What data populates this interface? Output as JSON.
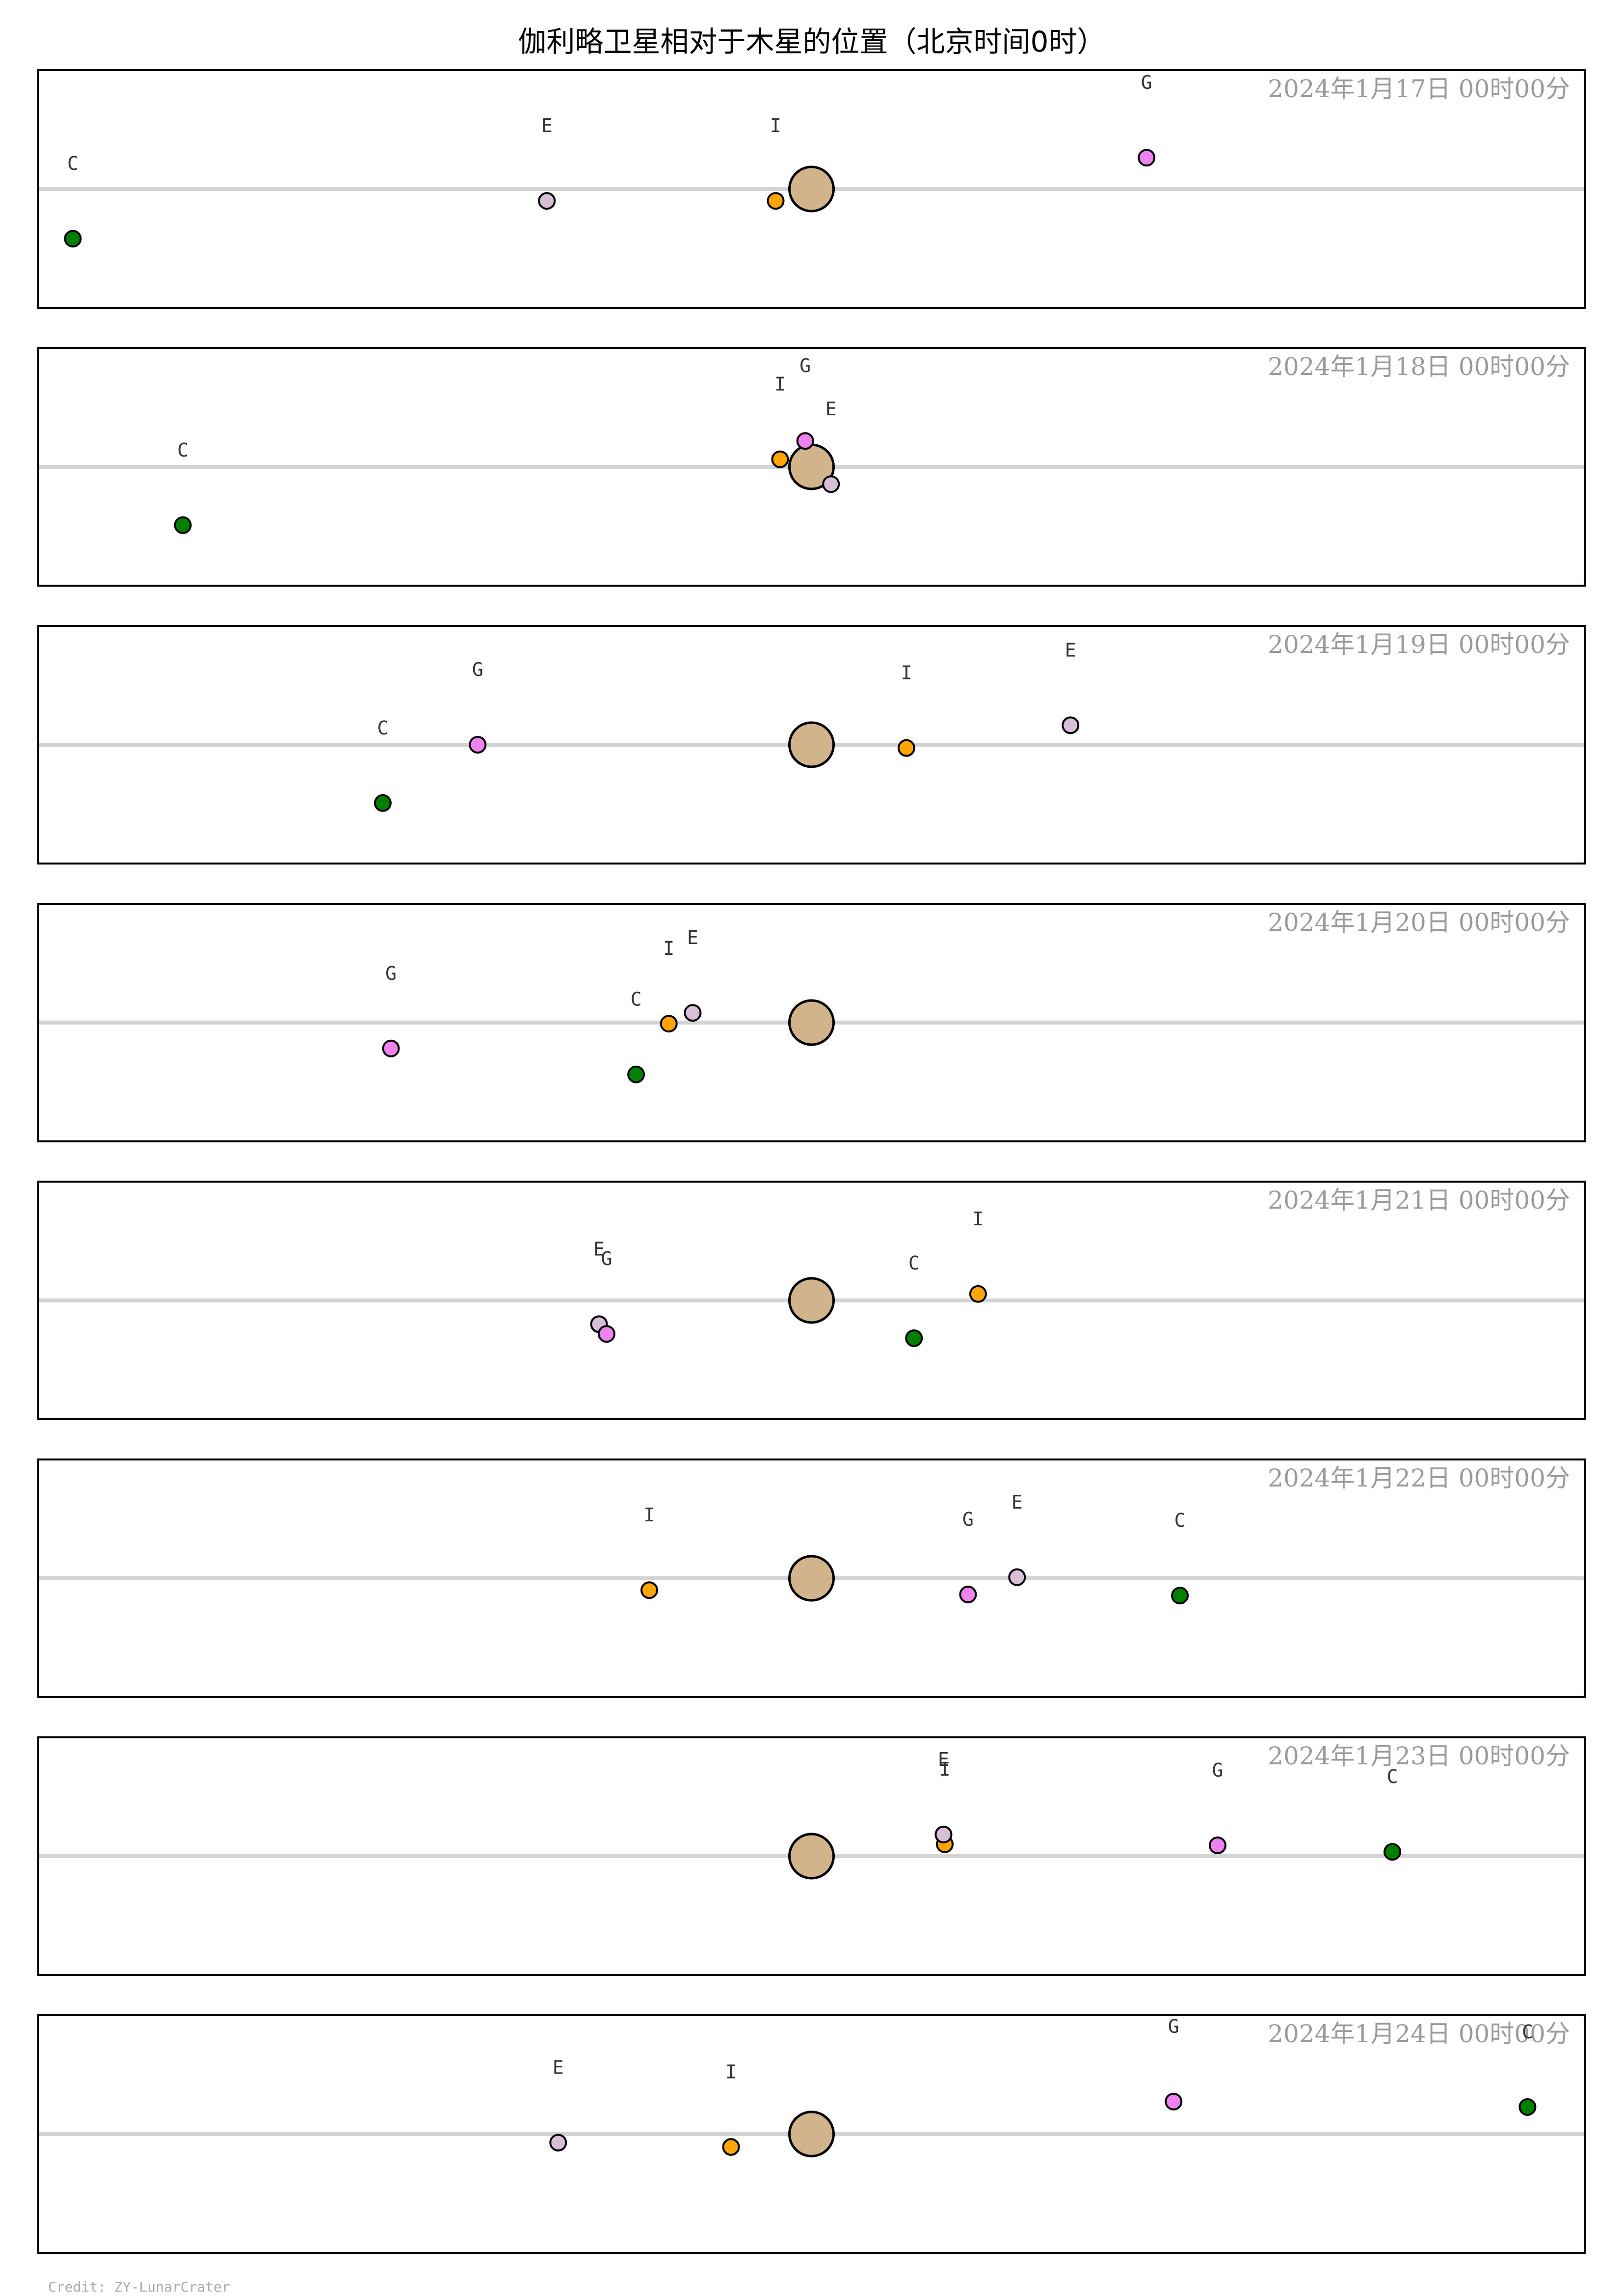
{
  "title": "伽利略卫星相对于木星的位置（北京时间0时）",
  "credit": "Credit: ZY-LunarCrater",
  "colors": {
    "I": "#ffa500",
    "E": "#d8bfd8",
    "G": "#ee82ee",
    "C": "#008000",
    "jupiter": "#d2b48c"
  },
  "chart_data": {
    "type": "scatter",
    "x_range": [
      -12.3,
      12.3
    ],
    "y_range": [
      -1.1,
      1.1
    ],
    "series_names": [
      "I",
      "E",
      "G",
      "C"
    ],
    "panels": [
      {
        "label": "2024年1月17日  00时00分",
        "moons": [
          {
            "name": "I",
            "x": -0.57,
            "y": -0.11
          },
          {
            "name": "E",
            "x": -4.21,
            "y": -0.11
          },
          {
            "name": "G",
            "x": 5.33,
            "y": 0.29
          },
          {
            "name": "C",
            "x": -11.75,
            "y": -0.46
          }
        ]
      },
      {
        "label": "2024年1月18日  00时00分",
        "moons": [
          {
            "name": "I",
            "x": -0.5,
            "y": 0.07
          },
          {
            "name": "E",
            "x": 0.31,
            "y": -0.16
          },
          {
            "name": "G",
            "x": -0.1,
            "y": 0.24
          },
          {
            "name": "C",
            "x": -10.0,
            "y": -0.54
          }
        ]
      },
      {
        "label": "2024年1月19日  00时00分",
        "moons": [
          {
            "name": "I",
            "x": 1.51,
            "y": -0.03
          },
          {
            "name": "E",
            "x": 4.12,
            "y": 0.18
          },
          {
            "name": "G",
            "x": -5.31,
            "y": 0.0
          },
          {
            "name": "C",
            "x": -6.82,
            "y": -0.54
          }
        ]
      },
      {
        "label": "2024年1月20日  00时00分",
        "moons": [
          {
            "name": "I",
            "x": -2.27,
            "y": -0.01
          },
          {
            "name": "E",
            "x": -1.89,
            "y": 0.09
          },
          {
            "name": "G",
            "x": -6.69,
            "y": -0.24
          },
          {
            "name": "C",
            "x": -2.79,
            "y": -0.48
          }
        ]
      },
      {
        "label": "2024年1月21日  00时00分",
        "moons": [
          {
            "name": "I",
            "x": 2.65,
            "y": 0.06
          },
          {
            "name": "E",
            "x": -3.38,
            "y": -0.22
          },
          {
            "name": "G",
            "x": -3.26,
            "y": -0.31
          },
          {
            "name": "C",
            "x": 1.63,
            "y": -0.35
          }
        ]
      },
      {
        "label": "2024年1月22日  00时00分",
        "moons": [
          {
            "name": "I",
            "x": -2.58,
            "y": -0.11
          },
          {
            "name": "E",
            "x": 3.27,
            "y": 0.01
          },
          {
            "name": "G",
            "x": 2.49,
            "y": -0.15
          },
          {
            "name": "C",
            "x": 5.86,
            "y": -0.16
          }
        ]
      },
      {
        "label": "2024年1月23日  00时00分",
        "moons": [
          {
            "name": "I",
            "x": 2.12,
            "y": 0.11
          },
          {
            "name": "E",
            "x": 2.1,
            "y": 0.2
          },
          {
            "name": "G",
            "x": 6.46,
            "y": 0.1
          },
          {
            "name": "C",
            "x": 9.24,
            "y": 0.04
          }
        ]
      },
      {
        "label": "2024年1月24日  00时00分",
        "moons": [
          {
            "name": "I",
            "x": -1.28,
            "y": -0.12
          },
          {
            "name": "E",
            "x": -4.03,
            "y": -0.08
          },
          {
            "name": "G",
            "x": 5.76,
            "y": 0.3
          },
          {
            "name": "C",
            "x": 11.39,
            "y": 0.25
          }
        ]
      }
    ]
  }
}
